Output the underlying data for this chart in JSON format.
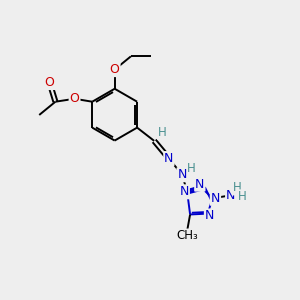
{
  "background_color": "#eeeeee",
  "atom_colors": {
    "C": "#000000",
    "N": "#0000cc",
    "O": "#cc0000",
    "H_label": "#4a9090",
    "default": "#000000"
  },
  "bond_color": "#000000",
  "bond_width": 1.4,
  "figsize": [
    3.0,
    3.0
  ],
  "dpi": 100,
  "xlim": [
    0,
    10
  ],
  "ylim": [
    0,
    10
  ]
}
